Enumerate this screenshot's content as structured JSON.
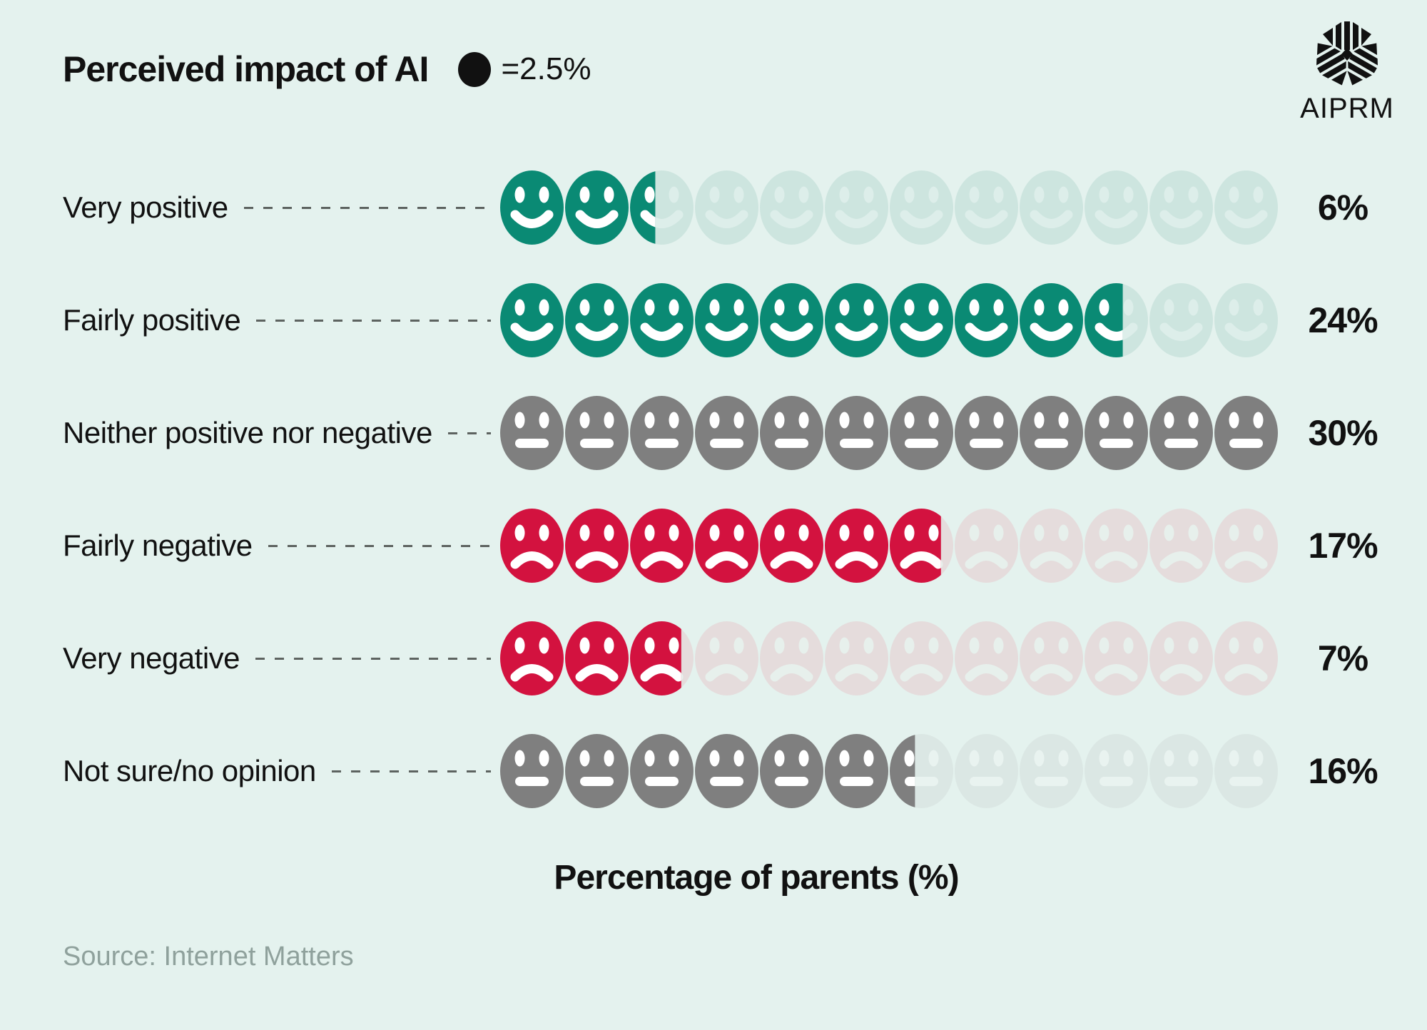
{
  "title": "Perceived impact of AI",
  "legend": {
    "unit_label": "=2.5%"
  },
  "logo": {
    "brand": "AIPRM"
  },
  "axis_label": "Percentage of parents (%)",
  "source": "Source: Internet Matters",
  "colors": {
    "background": "#e4f2ee",
    "text": "#111111",
    "dash_line": "#5d6360",
    "source_text": "#8fa19c",
    "legend_dot": "#111111",
    "palettes": {
      "positive": {
        "solid": "#0a8a74",
        "faded": "#cde5df",
        "feature": "#ffffff",
        "feature_faded": "#ddeeea"
      },
      "negative": {
        "solid": "#d3123f",
        "faded": "#e5dcdc",
        "feature": "#ffffff",
        "feature_faded": "#e7f0ec"
      },
      "neutral": {
        "solid": "#7f7f7f",
        "faded": "#dbe7e4",
        "feature": "#ffffff",
        "feature_faded": "#e9f3f0"
      }
    }
  },
  "chart_data": {
    "type": "bar",
    "subtype": "pictograph",
    "title": "Perceived impact of AI",
    "xlabel": "Percentage of parents (%)",
    "unit_percent": 2.5,
    "icons_per_row": 12,
    "row_max_percent": 30,
    "legend": "1 icon = 2.5%",
    "categories": [
      "Very positive",
      "Fairly positive",
      "Neither positive nor negative",
      "Fairly negative",
      "Very negative",
      "Not sure/no opinion"
    ],
    "values": [
      6,
      24,
      30,
      17,
      7,
      16
    ],
    "value_labels": [
      "6%",
      "24%",
      "30%",
      "17%",
      "7%",
      "16%"
    ],
    "moods": [
      "happy",
      "happy",
      "neutral",
      "sad",
      "sad",
      "neutral"
    ],
    "palette_keys": [
      "positive",
      "positive",
      "neutral",
      "negative",
      "negative",
      "neutral"
    ]
  }
}
